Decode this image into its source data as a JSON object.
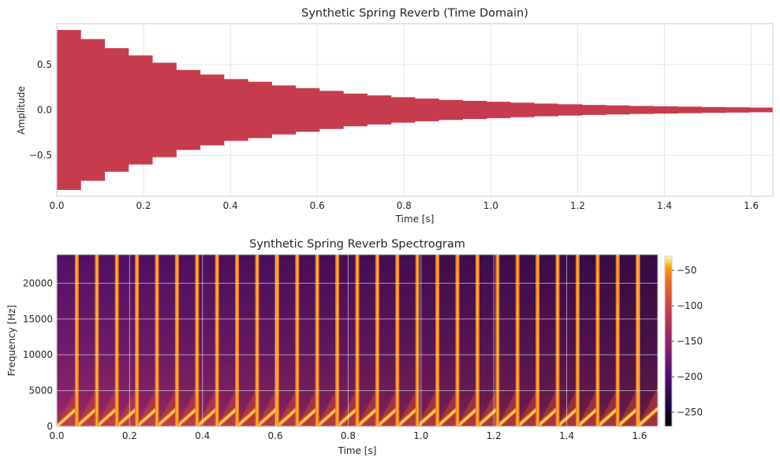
{
  "chart_data": [
    {
      "type": "area",
      "title": "Synthetic Spring Reverb (Time Domain)",
      "xlabel": "Time [s]",
      "ylabel": "Amplitude",
      "xlim": [
        0.0,
        1.65
      ],
      "ylim": [
        -0.95,
        0.95
      ],
      "xticks": [
        0.0,
        0.2,
        0.4,
        0.6,
        0.8,
        1.0,
        1.2,
        1.4,
        1.6
      ],
      "xtick_labels": [
        "0.0",
        "0.2",
        "0.4",
        "0.6",
        "0.8",
        "1.0",
        "1.2",
        "1.4",
        "1.6"
      ],
      "yticks": [
        -0.5,
        0.0,
        0.5
      ],
      "ytick_labels": [
        "−0.5",
        "0.0",
        "0.5"
      ],
      "grid": true,
      "series": [
        {
          "color": "#c73b4f",
          "segment_duration_s": 0.055,
          "envelope": [
            0.88,
            0.78,
            0.68,
            0.6,
            0.52,
            0.44,
            0.39,
            0.34,
            0.31,
            0.27,
            0.24,
            0.21,
            0.18,
            0.16,
            0.14,
            0.125,
            0.11,
            0.1,
            0.09,
            0.08,
            0.07,
            0.062,
            0.055,
            0.05,
            0.044,
            0.04,
            0.036,
            0.032,
            0.029,
            0.026,
            0.023
          ]
        }
      ]
    },
    {
      "type": "heatmap",
      "title": "Synthetic Spring Reverb Spectrogram",
      "xlabel": "Time [s]",
      "ylabel": "Frequency [Hz]",
      "xlim": [
        0.0,
        1.65
      ],
      "ylim": [
        0,
        24000
      ],
      "xticks": [
        0.0,
        0.2,
        0.4,
        0.6,
        0.8,
        1.0,
        1.2,
        1.4,
        1.6
      ],
      "xtick_labels": [
        "0.0",
        "0.2",
        "0.4",
        "0.6",
        "0.8",
        "1.0",
        "1.2",
        "1.4",
        "1.6"
      ],
      "yticks": [
        0,
        5000,
        10000,
        15000,
        20000
      ],
      "ytick_labels": [
        "0",
        "5000",
        "10000",
        "15000",
        "20000"
      ],
      "colormap": "inferno",
      "colorbar": {
        "range": [
          -270,
          -30
        ],
        "ticks": [
          -50,
          -100,
          -150,
          -200,
          -250
        ],
        "tick_labels": [
          "−50",
          "−100",
          "−150",
          "−200",
          "−250"
        ]
      },
      "segment_duration_s": 0.055,
      "chirp_top_hz": 2500,
      "grid": true
    }
  ]
}
